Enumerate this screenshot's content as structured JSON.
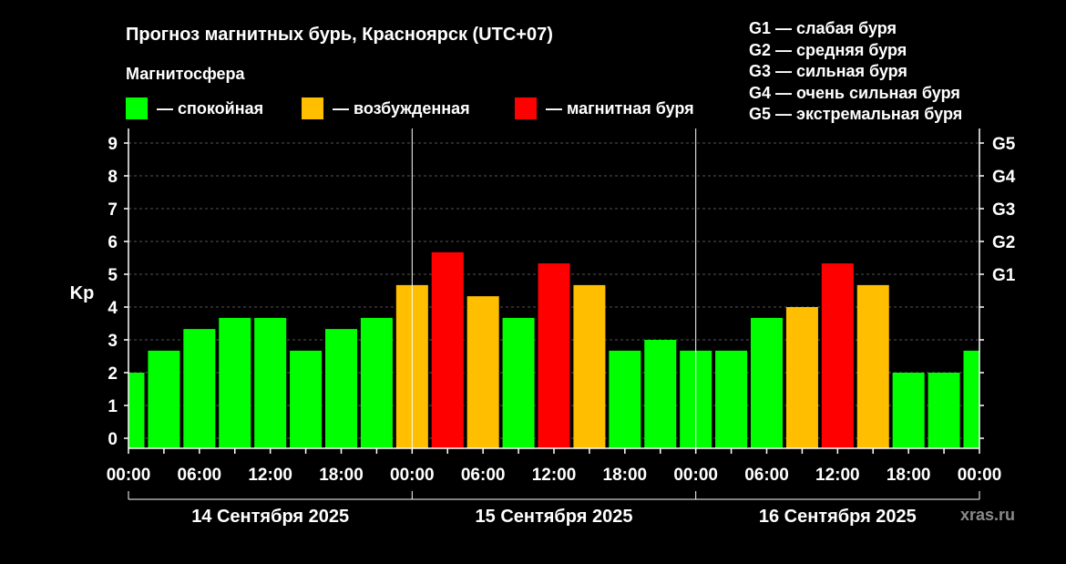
{
  "header": {
    "title": "Прогноз магнитных бурь, Красноярск (UTC+07)",
    "subtitle": "Магнитосфера"
  },
  "legend": [
    {
      "label": "— спокойная",
      "color": "#00ff00"
    },
    {
      "label": "— возбужденная",
      "color": "#ffbf00"
    },
    {
      "label": "— магнитная буря",
      "color": "#ff0000"
    }
  ],
  "storm_levels": [
    "G1 — слабая буря",
    "G2 — средняя буря",
    "G3 — сильная буря",
    "G4 — очень сильная буря",
    "G5 — экстремальная буря"
  ],
  "watermark": "xras.ru",
  "colors": {
    "quiet": "#00ff00",
    "active": "#ffbf00",
    "storm": "#ff0000",
    "background": "#000000"
  },
  "chart_data": {
    "type": "bar",
    "ylabel": "Kp",
    "ylim": [
      0,
      9
    ],
    "yticks": [
      "0",
      "1",
      "2",
      "3",
      "4",
      "5",
      "6",
      "7",
      "8",
      "9"
    ],
    "right_axis_labels": [
      {
        "kp": 5,
        "label": "G1"
      },
      {
        "kp": 6,
        "label": "G2"
      },
      {
        "kp": 7,
        "label": "G3"
      },
      {
        "kp": 8,
        "label": "G4"
      },
      {
        "kp": 9,
        "label": "G5"
      }
    ],
    "xtick_labels": [
      "00:00",
      "06:00",
      "12:00",
      "18:00",
      "00:00",
      "06:00",
      "12:00",
      "18:00",
      "00:00",
      "06:00",
      "12:00",
      "18:00",
      "00:00"
    ],
    "days": [
      "14 Сентября 2025",
      "15 Сентября 2025",
      "16 Сентября 2025"
    ],
    "grid": true,
    "bar_interval_hours": 3,
    "values": [
      2.0,
      2.67,
      3.33,
      3.67,
      3.67,
      2.67,
      3.33,
      3.67,
      4.67,
      5.67,
      4.33,
      3.67,
      5.33,
      4.67,
      2.67,
      3.0,
      2.67,
      2.67,
      3.67,
      4.0,
      5.33,
      4.67,
      2.0,
      2.0,
      2.67
    ],
    "levels": [
      "quiet",
      "quiet",
      "quiet",
      "quiet",
      "quiet",
      "quiet",
      "quiet",
      "quiet",
      "active",
      "storm",
      "active",
      "quiet",
      "storm",
      "active",
      "quiet",
      "quiet",
      "quiet",
      "quiet",
      "quiet",
      "active",
      "storm",
      "active",
      "quiet",
      "quiet",
      "quiet"
    ]
  }
}
